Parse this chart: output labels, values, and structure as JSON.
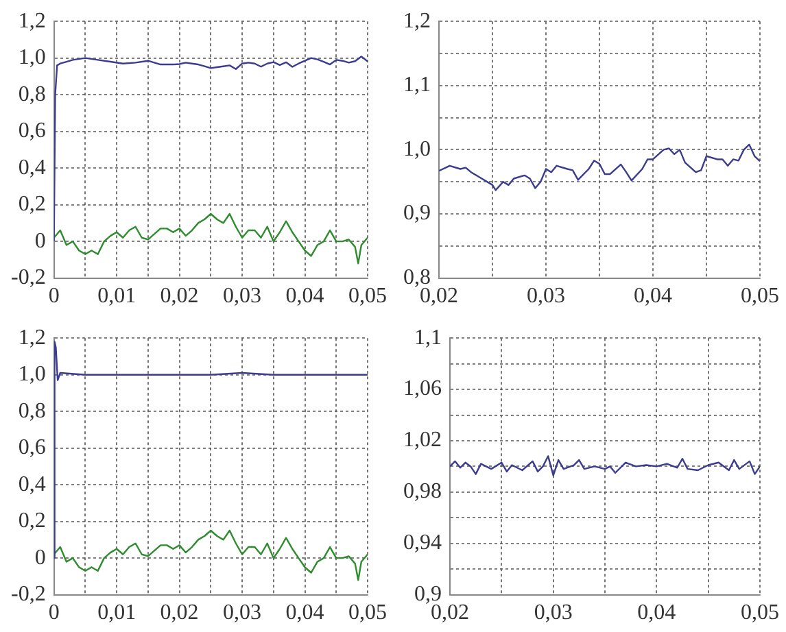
{
  "chart_data": [
    {
      "type": "line",
      "xlim": [
        0,
        0.05
      ],
      "ylim": [
        -0.2,
        1.2
      ],
      "grid": true,
      "marker": "none",
      "line_style": "solid",
      "xticks": [
        0,
        {
          "value": 0.005,
          "label": null
        },
        {
          "value": 0.01,
          "label": "0,01"
        },
        {
          "value": 0.015,
          "label": null
        },
        {
          "value": 0.02,
          "label": "0,02"
        },
        {
          "value": 0.025,
          "label": null
        },
        {
          "value": 0.03,
          "label": "0,03"
        },
        {
          "value": 0.035,
          "label": null
        },
        {
          "value": 0.04,
          "label": "0,04"
        },
        {
          "value": 0.045,
          "label": null
        },
        {
          "value": 0.05,
          "label": "0,05"
        }
      ],
      "yticks": [
        {
          "value": -0.2,
          "label": "-0,2"
        },
        0,
        {
          "value": 0.2,
          "label": "0,2"
        },
        {
          "value": 0.4,
          "label": "0,4"
        },
        {
          "value": 0.6,
          "label": "0,6"
        },
        {
          "value": 0.8,
          "label": "0,8"
        },
        {
          "value": 1,
          "label": "1,0"
        },
        {
          "value": 1.2,
          "label": "1,2"
        }
      ],
      "series": [
        {
          "color": "#3b3b8f",
          "x": [
            0,
            0.0002,
            0.0005,
            0.001,
            0.002,
            0.003,
            0.005,
            0.007,
            0.009,
            0.011,
            0.013,
            0.015,
            0.017,
            0.019,
            0.02,
            0.021,
            0.022,
            0.023,
            0.024,
            0.025,
            0.026,
            0.027,
            0.028,
            0.029,
            0.03,
            0.031,
            0.032,
            0.033,
            0.034,
            0.035,
            0.036,
            0.037,
            0.038,
            0.039,
            0.04,
            0.041,
            0.042,
            0.043,
            0.044,
            0.045,
            0.046,
            0.047,
            0.048,
            0.049,
            0.05
          ],
          "values": [
            0,
            0.8,
            0.96,
            0.97,
            0.98,
            0.99,
            1,
            0.99,
            0.98,
            0.97,
            0.975,
            0.985,
            0.965,
            0.965,
            0.967,
            0.975,
            0.97,
            0.965,
            0.955,
            0.945,
            0.95,
            0.955,
            0.96,
            0.94,
            0.97,
            0.975,
            0.97,
            0.953,
            0.97,
            0.978,
            0.962,
            0.977,
            0.952,
            0.97,
            0.985,
            1,
            0.993,
            0.98,
            0.965,
            0.99,
            0.985,
            0.975,
            0.983,
            1.008,
            0.982
          ]
        },
        {
          "color": "#2e8b2e",
          "x": [
            0,
            0.001,
            0.002,
            0.003,
            0.004,
            0.005,
            0.006,
            0.007,
            0.008,
            0.009,
            0.01,
            0.011,
            0.012,
            0.013,
            0.014,
            0.015,
            0.016,
            0.017,
            0.018,
            0.019,
            0.02,
            0.021,
            0.022,
            0.023,
            0.024,
            0.025,
            0.026,
            0.027,
            0.028,
            0.029,
            0.03,
            0.031,
            0.032,
            0.033,
            0.034,
            0.035,
            0.036,
            0.037,
            0.038,
            0.039,
            0.04,
            0.041,
            0.042,
            0.043,
            0.044,
            0.045,
            0.046,
            0.047,
            0.048,
            0.0485,
            0.049,
            0.05
          ],
          "values": [
            0.02,
            0.06,
            -0.02,
            0,
            -0.05,
            -0.07,
            -0.05,
            -0.07,
            0,
            0.03,
            0.05,
            0.02,
            0.06,
            0.08,
            0.02,
            0.01,
            0.04,
            0.07,
            0.07,
            0.05,
            0.07,
            0.03,
            0.06,
            0.1,
            0.12,
            0.15,
            0.12,
            0.1,
            0.15,
            0.08,
            0.02,
            0.06,
            0.06,
            0.02,
            0.08,
            0,
            0.05,
            0.11,
            0.05,
            0,
            -0.05,
            -0.08,
            -0.02,
            0,
            0.06,
            0,
            0,
            0.01,
            -0.03,
            -0.12,
            -0.02,
            0.02
          ]
        }
      ]
    },
    {
      "type": "line",
      "xlim": [
        0.02,
        0.05
      ],
      "ylim": [
        0.8,
        1.2
      ],
      "grid": true,
      "marker": "none",
      "line_style": "solid",
      "xticks": [
        {
          "value": 0.02,
          "label": "0,02"
        },
        {
          "value": 0.025,
          "label": null
        },
        {
          "value": 0.03,
          "label": "0,03"
        },
        {
          "value": 0.035,
          "label": null
        },
        {
          "value": 0.04,
          "label": "0,04"
        },
        {
          "value": 0.045,
          "label": null
        },
        {
          "value": 0.05,
          "label": "0,05"
        }
      ],
      "yticks": [
        {
          "value": 0.8,
          "label": "0,8"
        },
        {
          "value": 0.85,
          "label": null
        },
        {
          "value": 0.9,
          "label": "0,9"
        },
        {
          "value": 0.95,
          "label": null
        },
        {
          "value": 1,
          "label": "1,0"
        },
        {
          "value": 1.05,
          "label": null
        },
        {
          "value": 1.1,
          "label": "1,1"
        },
        {
          "value": 1.15,
          "label": null
        },
        {
          "value": 1.2,
          "label": "1,2"
        }
      ],
      "series": [
        {
          "color": "#3b3b8f",
          "x": [
            0.02,
            0.021,
            0.022,
            0.0225,
            0.023,
            0.024,
            0.025,
            0.0253,
            0.026,
            0.0265,
            0.027,
            0.028,
            0.0285,
            0.029,
            0.0295,
            0.03,
            0.0305,
            0.031,
            0.032,
            0.0325,
            0.033,
            0.034,
            0.0345,
            0.035,
            0.0355,
            0.036,
            0.037,
            0.0375,
            0.038,
            0.039,
            0.0395,
            0.04,
            0.041,
            0.0415,
            0.042,
            0.0425,
            0.043,
            0.044,
            0.0445,
            0.045,
            0.046,
            0.0465,
            0.047,
            0.0475,
            0.048,
            0.0485,
            0.049,
            0.0495,
            0.05
          ],
          "values": [
            0.967,
            0.975,
            0.97,
            0.972,
            0.965,
            0.955,
            0.945,
            0.937,
            0.95,
            0.945,
            0.955,
            0.96,
            0.955,
            0.94,
            0.95,
            0.97,
            0.965,
            0.975,
            0.97,
            0.968,
            0.953,
            0.97,
            0.983,
            0.978,
            0.962,
            0.962,
            0.977,
            0.965,
            0.952,
            0.97,
            0.985,
            0.985,
            1,
            1.002,
            0.993,
            1,
            0.98,
            0.965,
            0.968,
            0.99,
            0.985,
            0.985,
            0.975,
            0.985,
            0.983,
            1,
            1.008,
            0.99,
            0.982
          ]
        }
      ]
    },
    {
      "type": "line",
      "xlim": [
        0,
        0.05
      ],
      "ylim": [
        -0.2,
        1.2
      ],
      "grid": true,
      "marker": "none",
      "line_style": "solid",
      "xticks": [
        0,
        {
          "value": 0.005,
          "label": null
        },
        {
          "value": 0.01,
          "label": "0,01"
        },
        {
          "value": 0.015,
          "label": null
        },
        {
          "value": 0.02,
          "label": "0,02"
        },
        {
          "value": 0.025,
          "label": null
        },
        {
          "value": 0.03,
          "label": "0,03"
        },
        {
          "value": 0.035,
          "label": null
        },
        {
          "value": 0.04,
          "label": "0,04"
        },
        {
          "value": 0.045,
          "label": null
        },
        {
          "value": 0.05,
          "label": "0,05"
        }
      ],
      "yticks": [
        {
          "value": -0.2,
          "label": "-0,2"
        },
        0,
        {
          "value": 0.2,
          "label": "0,2"
        },
        {
          "value": 0.4,
          "label": "0,4"
        },
        {
          "value": 0.6,
          "label": "0,6"
        },
        {
          "value": 0.8,
          "label": "0,8"
        },
        {
          "value": 1,
          "label": "1,0"
        },
        {
          "value": 1.2,
          "label": "1,2"
        }
      ],
      "series": [
        {
          "color": "#3b3b8f",
          "x": [
            0,
            0.0001,
            0.0003,
            0.0006,
            0.001,
            0.005,
            0.01,
            0.015,
            0.02,
            0.025,
            0.03,
            0.035,
            0.04,
            0.045,
            0.05
          ],
          "values": [
            0,
            1.18,
            1.15,
            0.97,
            1.01,
            1,
            1,
            1,
            1,
            1,
            1.01,
            1,
            1,
            1,
            1
          ]
        },
        {
          "color": "#2e8b2e",
          "x": [
            0,
            0.001,
            0.002,
            0.003,
            0.004,
            0.005,
            0.006,
            0.007,
            0.008,
            0.009,
            0.01,
            0.011,
            0.012,
            0.013,
            0.014,
            0.015,
            0.016,
            0.017,
            0.018,
            0.019,
            0.02,
            0.021,
            0.022,
            0.023,
            0.024,
            0.025,
            0.026,
            0.027,
            0.028,
            0.029,
            0.03,
            0.031,
            0.032,
            0.033,
            0.034,
            0.035,
            0.036,
            0.037,
            0.038,
            0.039,
            0.04,
            0.041,
            0.042,
            0.043,
            0.044,
            0.045,
            0.046,
            0.047,
            0.048,
            0.0485,
            0.049,
            0.05
          ],
          "values": [
            0.02,
            0.06,
            -0.02,
            0,
            -0.05,
            -0.07,
            -0.05,
            -0.07,
            0,
            0.03,
            0.05,
            0.02,
            0.06,
            0.08,
            0.02,
            0.01,
            0.04,
            0.07,
            0.07,
            0.05,
            0.07,
            0.03,
            0.06,
            0.1,
            0.12,
            0.15,
            0.12,
            0.1,
            0.15,
            0.08,
            0.02,
            0.06,
            0.06,
            0.02,
            0.08,
            0,
            0.05,
            0.11,
            0.05,
            0,
            -0.05,
            -0.08,
            -0.02,
            0,
            0.06,
            0,
            0,
            0.01,
            -0.03,
            -0.12,
            -0.02,
            0.02
          ]
        }
      ]
    },
    {
      "type": "line",
      "xlim": [
        0.02,
        0.05
      ],
      "ylim": [
        0.9,
        1.1
      ],
      "grid": true,
      "marker": "none",
      "line_style": "solid",
      "xticks": [
        {
          "value": 0.02,
          "label": "0,02"
        },
        {
          "value": 0.025,
          "label": null
        },
        {
          "value": 0.03,
          "label": "0,03"
        },
        {
          "value": 0.035,
          "label": null
        },
        {
          "value": 0.04,
          "label": "0,04"
        },
        {
          "value": 0.045,
          "label": null
        },
        {
          "value": 0.05,
          "label": "0,05"
        }
      ],
      "yticks": [
        {
          "value": 0.9,
          "label": "0,9"
        },
        {
          "value": 0.92,
          "label": null
        },
        {
          "value": 0.94,
          "label": "0,94"
        },
        {
          "value": 0.96,
          "label": null
        },
        {
          "value": 0.98,
          "label": "0,98"
        },
        {
          "value": 1,
          "label": null
        },
        {
          "value": 1.02,
          "label": "1,02"
        },
        {
          "value": 1.04,
          "label": null
        },
        {
          "value": 1.06,
          "label": "1,06"
        },
        {
          "value": 1.08,
          "label": null
        },
        {
          "value": 1.1,
          "label": "1,1"
        }
      ],
      "series": [
        {
          "color": "#3b3b8f",
          "x": [
            0.02,
            0.0205,
            0.021,
            0.0215,
            0.022,
            0.0225,
            0.023,
            0.024,
            0.025,
            0.0255,
            0.026,
            0.027,
            0.028,
            0.0285,
            0.029,
            0.0295,
            0.03,
            0.0305,
            0.031,
            0.032,
            0.0325,
            0.033,
            0.034,
            0.035,
            0.0355,
            0.036,
            0.037,
            0.038,
            0.039,
            0.04,
            0.041,
            0.042,
            0.0425,
            0.043,
            0.044,
            0.045,
            0.046,
            0.047,
            0.0475,
            0.048,
            0.049,
            0.0495,
            0.05
          ],
          "values": [
            1,
            1.004,
            0.999,
            1.003,
            1,
            0.994,
            1.002,
            0.998,
            1.003,
            0.996,
            1.001,
            0.997,
            1.004,
            0.996,
            1,
            1.008,
            0.993,
            1.005,
            0.998,
            1.001,
            1.005,
            0.998,
            1,
            0.998,
            1,
            0.995,
            1.003,
            1,
            1.001,
            1,
            1.002,
            0.999,
            1.006,
            0.998,
            0.997,
            1.001,
            1.003,
            0.997,
            1.005,
            0.998,
            1.004,
            0.994,
            1
          ]
        }
      ]
    }
  ]
}
